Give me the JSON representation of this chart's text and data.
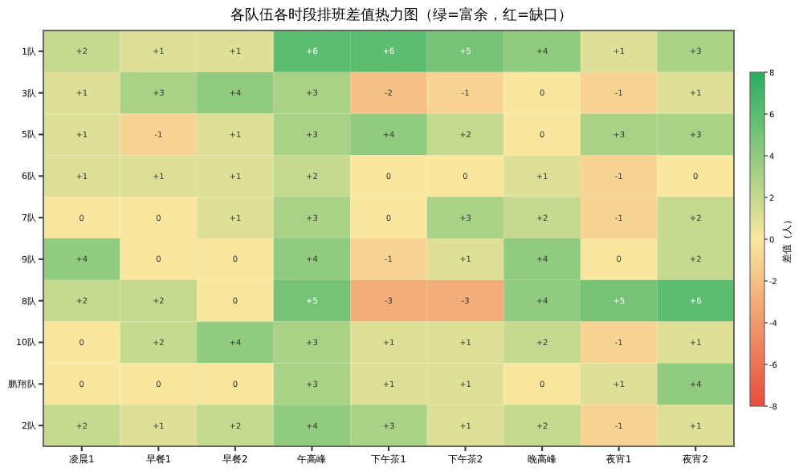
{
  "chart_data": {
    "type": "heatmap",
    "title": "各队伍各时段排班差值热力图（绿=富余，红=缺口）",
    "clabel": "差值（人）",
    "categories": [
      "凌晨1",
      "早餐1",
      "早餐2",
      "午高峰",
      "下午茶1",
      "下午茶2",
      "晚高峰",
      "夜宵1",
      "夜宵2"
    ],
    "y_categories": [
      "1队",
      "3队",
      "5队",
      "6队",
      "7队",
      "9队",
      "8队",
      "10队",
      "鹏翔队",
      "2队"
    ],
    "cells": [
      [
        2,
        1,
        1,
        6,
        6,
        5,
        4,
        1,
        3
      ],
      [
        1,
        3,
        4,
        3,
        -2,
        -1,
        0,
        -1,
        1
      ],
      [
        1,
        -1,
        1,
        3,
        4,
        2,
        0,
        3,
        3
      ],
      [
        1,
        1,
        1,
        2,
        0,
        0,
        1,
        -1,
        0
      ],
      [
        0,
        0,
        1,
        3,
        0,
        3,
        2,
        -1,
        2
      ],
      [
        4,
        0,
        0,
        4,
        -1,
        1,
        4,
        0,
        2
      ],
      [
        2,
        2,
        0,
        5,
        -3,
        -3,
        4,
        5,
        6
      ],
      [
        0,
        2,
        4,
        3,
        1,
        1,
        2,
        -1,
        1
      ],
      [
        0,
        0,
        0,
        3,
        1,
        1,
        0,
        1,
        4
      ],
      [
        2,
        1,
        2,
        4,
        3,
        1,
        2,
        -1,
        1
      ]
    ],
    "cell_labels": [
      [
        "+2",
        "+1",
        "+1",
        "+6",
        "+6",
        "+5",
        "+4",
        "+1",
        "+3"
      ],
      [
        "+1",
        "+3",
        "+4",
        "+3",
        "-2",
        "-1",
        "0",
        "-1",
        "+1"
      ],
      [
        "+1",
        "-1",
        "+1",
        "+3",
        "+4",
        "+2",
        "0",
        "+3",
        "+3"
      ],
      [
        "+1",
        "+1",
        "+1",
        "+2",
        "0",
        "0",
        "+1",
        "-1",
        "0"
      ],
      [
        "0",
        "0",
        "+1",
        "+3",
        "0",
        "+3",
        "+2",
        "-1",
        "+2"
      ],
      [
        "+4",
        "0",
        "0",
        "+4",
        "-1",
        "+1",
        "+4",
        "0",
        "+2"
      ],
      [
        "+2",
        "+2",
        "0",
        "+5",
        "-3",
        "-3",
        "+4",
        "+5",
        "+6"
      ],
      [
        "0",
        "+2",
        "+4",
        "+3",
        "+1",
        "+1",
        "+2",
        "-1",
        "+1"
      ],
      [
        "0",
        "0",
        "0",
        "+3",
        "+1",
        "+1",
        "0",
        "+1",
        "+4"
      ],
      [
        "+2",
        "+1",
        "+2",
        "+4",
        "+3",
        "+1",
        "+2",
        "-1",
        "+1"
      ]
    ],
    "clim": [
      -8,
      8
    ],
    "cticks": [
      -8,
      -6,
      -4,
      -2,
      0,
      2,
      4,
      6,
      8
    ]
  }
}
